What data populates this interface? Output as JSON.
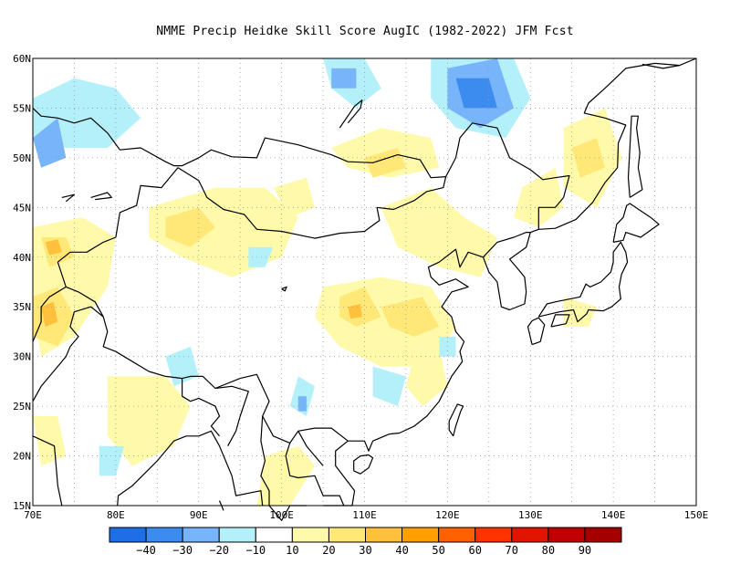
{
  "title": "NMME Precip Heidke Skill Score AugIC (1982-2022) JFM Fcst",
  "map": {
    "lon_range": [
      70,
      150
    ],
    "lat_range": [
      15,
      60
    ],
    "lon_ticks": [
      "70E",
      "80E",
      "90E",
      "100E",
      "110E",
      "120E",
      "130E",
      "140E",
      "150E"
    ],
    "lat_ticks": [
      "15N",
      "20N",
      "25N",
      "30N",
      "35N",
      "40N",
      "45N",
      "50N",
      "55N",
      "60N"
    ],
    "grid": "dotted",
    "coastline_color": "#000000"
  },
  "colorbar": {
    "labels": [
      "-40",
      "-30",
      "-20",
      "-10",
      "10",
      "20",
      "30",
      "40",
      "50",
      "60",
      "70",
      "80",
      "90"
    ],
    "colors": [
      "#1e6ee6",
      "#3c8cf0",
      "#78b4fa",
      "#b4f0fa",
      "#ffffff",
      "#fffaaa",
      "#ffe878",
      "#ffc03c",
      "#ffa000",
      "#ff6000",
      "#ff3200",
      "#e11400",
      "#c00000",
      "#a50000"
    ]
  },
  "field": {
    "description_colors": {
      "light_blue": "#b4f0fa",
      "mid_blue": "#78b4fa",
      "blue": "#3c8cf0",
      "light_yellow": "#fffaaa",
      "yellow": "#ffe878",
      "orange": "#ffc03c"
    }
  }
}
